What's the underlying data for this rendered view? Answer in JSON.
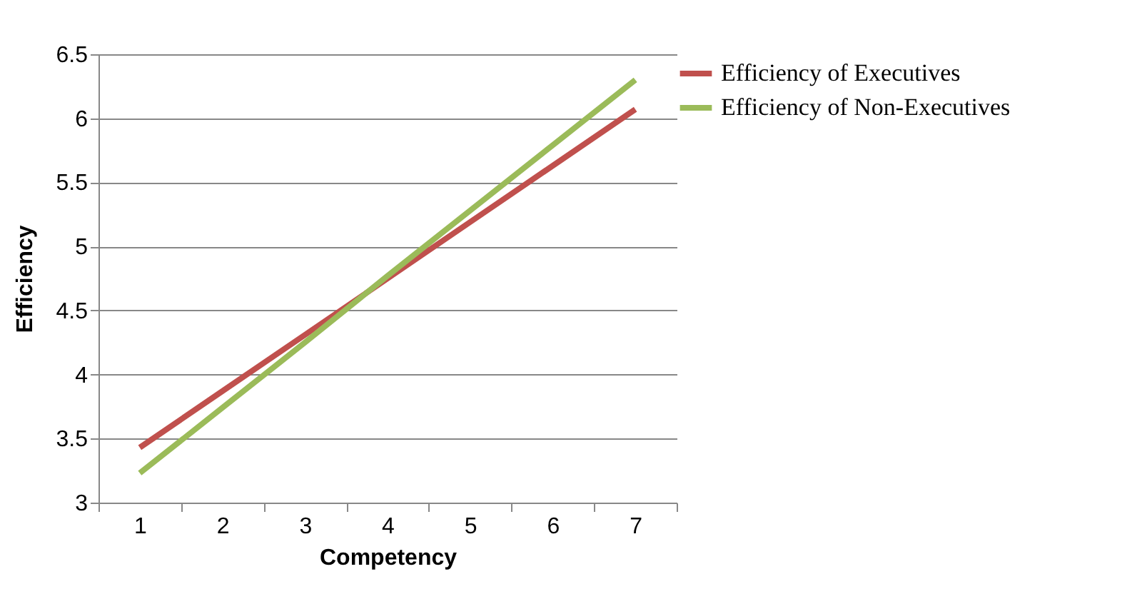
{
  "chart_data": {
    "type": "line",
    "xlabel": "Competency",
    "ylabel": "Efficiency",
    "categories": [
      "1",
      "2",
      "3",
      "4",
      "5",
      "6",
      "7"
    ],
    "series": [
      {
        "name": "Efficiency of Executives",
        "color": "#c0504d",
        "values": [
          3.43,
          3.87,
          4.31,
          4.75,
          5.19,
          5.63,
          6.07
        ]
      },
      {
        "name": "Efficiency of Non-Executives",
        "color": "#9bbb59",
        "values": [
          3.23,
          3.74,
          4.25,
          4.77,
          5.28,
          5.79,
          6.3
        ]
      }
    ],
    "ylim": [
      3,
      6.5
    ],
    "yticks": [
      3,
      3.5,
      4,
      4.5,
      5,
      5.5,
      6,
      6.5
    ],
    "grid": "y",
    "legend": "right",
    "marker": "none",
    "line_style": "solid"
  }
}
